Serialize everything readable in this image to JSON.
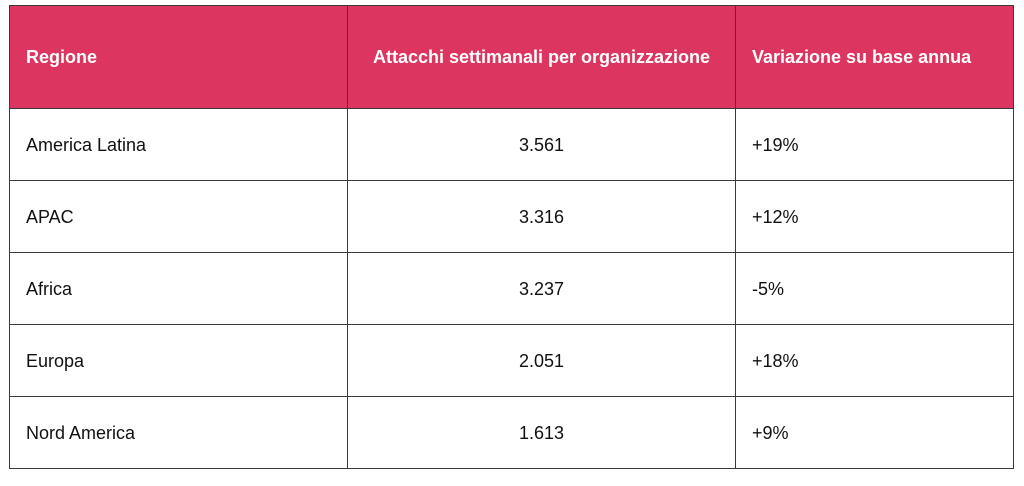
{
  "table": {
    "headers": [
      "Regione",
      "Attacchi settimanali per organizzazione",
      "Variazione su base annua"
    ],
    "rows": [
      [
        "America Latina",
        "3.561",
        "+19%"
      ],
      [
        "APAC",
        "3.316",
        "+12%"
      ],
      [
        "Africa",
        "3.237",
        "-5%"
      ],
      [
        "Europa",
        "2.051",
        "+18%"
      ],
      [
        "Nord America",
        "1.613",
        "+9%"
      ]
    ]
  },
  "colors": {
    "header_background": "#db3560",
    "header_text": "#ffffff",
    "border": "#3a3a3a"
  }
}
